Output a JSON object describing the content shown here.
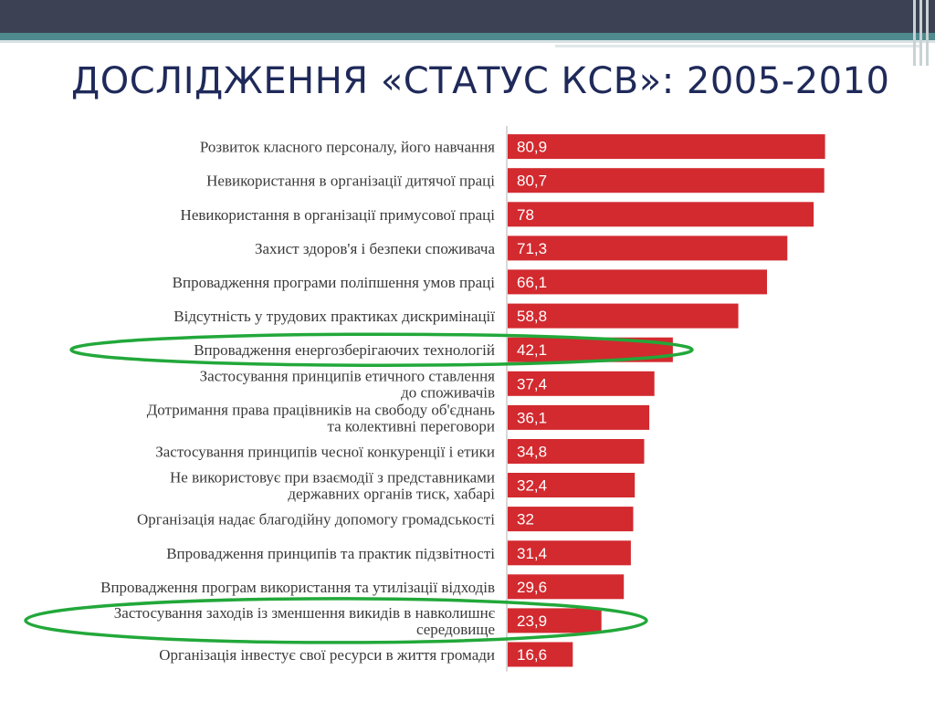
{
  "slide": {
    "title": "ДОСЛІДЖЕННЯ «СТАТУС КСВ»: 2005-2010"
  },
  "colors": {
    "header_dark": "#3c4153",
    "header_teal": "#4f8a8f",
    "title": "#1f2a5a",
    "bar": "#d22a2f",
    "highlight": "#22a83a"
  },
  "chart_data": {
    "type": "bar",
    "orientation": "horizontal",
    "title": "",
    "xlabel": "",
    "ylabel": "",
    "xlim": [
      0,
      100
    ],
    "grid": false,
    "categories": [
      [
        "Розвиток класного персоналу, його навчання"
      ],
      [
        "Невикористання в організації дитячої праці"
      ],
      [
        "Невикористання в організації примусової праці"
      ],
      [
        "Захист здоров'я і безпеки споживача"
      ],
      [
        "Впровадження програми поліпшення умов праці"
      ],
      [
        "Відсутність у трудових практиках дискримінації"
      ],
      [
        "Впровадження енергозберігаючих технологій"
      ],
      [
        "Застосування принципів етичного ставлення",
        "до споживачів"
      ],
      [
        "Дотримання права працівників на свободу об'єднань",
        "та колективні переговори"
      ],
      [
        "Застосування принципів чесної конкуренції і етики"
      ],
      [
        "Не використовує при взаємодії з представниками",
        "державних органів тиск, хабарі"
      ],
      [
        "Організація надає благодійну допомогу громадськості"
      ],
      [
        "Впровадження принципів та практик підзвітності"
      ],
      [
        "Впровадження програм використання та утилізації відходів"
      ],
      [
        "Застосування заходів із зменшення викидів в навколишнє",
        "середовище"
      ],
      [
        "Організація інвестує свої ресурси в життя громади"
      ]
    ],
    "values": [
      80.9,
      80.7,
      78,
      71.3,
      66.1,
      58.8,
      42.1,
      37.4,
      36.1,
      34.8,
      32.4,
      32,
      31.4,
      29.6,
      23.9,
      16.6
    ],
    "value_labels": [
      "80,9",
      "80,7",
      "78",
      "71,3",
      "66,1",
      "58,8",
      "42,1",
      "37,4",
      "36,1",
      "34,8",
      "32,4",
      "32",
      "31,4",
      "29,6",
      "23,9",
      "16,6"
    ],
    "highlighted": [
      6,
      14
    ]
  }
}
